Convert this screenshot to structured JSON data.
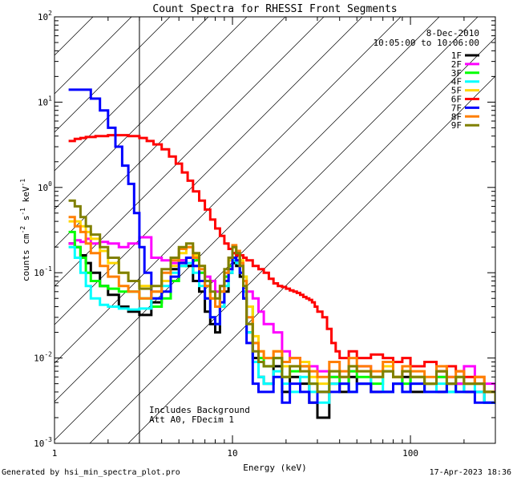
{
  "chart_data": {
    "type": "line",
    "title": "Count Spectra for RHESSI Front Segments",
    "xlabel": "Energy (keV)",
    "ylabel": "counts cm-2 s-1 keV-1",
    "xscale": "log",
    "yscale": "log",
    "xlim": [
      1,
      300
    ],
    "ylim": [
      0.001,
      100
    ],
    "x_ticks": [
      {
        "value": 1,
        "label": "1"
      },
      {
        "value": 10,
        "label": "10"
      },
      {
        "value": 100,
        "label": "100"
      }
    ],
    "y_ticks": [
      {
        "value": 0.001,
        "base": "10",
        "exp": "-3"
      },
      {
        "value": 0.01,
        "base": "10",
        "exp": "-2"
      },
      {
        "value": 0.1,
        "base": "10",
        "exp": "-1"
      },
      {
        "value": 1,
        "base": "10",
        "exp": "0"
      },
      {
        "value": 10,
        "base": "10",
        "exp": "1"
      },
      {
        "value": 100,
        "base": "10",
        "exp": "2"
      }
    ],
    "date": "8-Dec-2010",
    "time_range": "10:05:00 to 10:06:00",
    "shaded_region": {
      "x_from": 1,
      "x_to": 3,
      "pattern": "diagonal hatch"
    },
    "annotations": [
      "Includes Background",
      "Att A0, FDecim 1"
    ],
    "series": [
      {
        "name": "1F",
        "color": "#000000",
        "x": [
          1.2,
          1.3,
          1.4,
          1.5,
          1.6,
          1.8,
          2.0,
          2.3,
          2.6,
          3.0,
          3.5,
          4.0,
          4.5,
          5.0,
          5.5,
          6.0,
          6.5,
          7.0,
          7.5,
          8.0,
          8.5,
          9.0,
          9.5,
          10.0,
          10.5,
          11.0,
          11.5,
          12,
          13,
          14,
          15,
          17,
          19,
          21,
          24,
          27,
          30,
          35,
          40,
          45,
          50,
          60,
          70,
          80,
          90,
          100,
          120,
          140,
          160,
          180,
          200,
          230,
          260,
          300
        ],
        "y": [
          0.22,
          0.2,
          0.16,
          0.13,
          0.1,
          0.07,
          0.055,
          0.04,
          0.035,
          0.032,
          0.045,
          0.08,
          0.11,
          0.14,
          0.12,
          0.08,
          0.06,
          0.035,
          0.025,
          0.02,
          0.04,
          0.06,
          0.1,
          0.13,
          0.12,
          0.09,
          0.05,
          0.02,
          0.01,
          0.006,
          0.005,
          0.008,
          0.004,
          0.006,
          0.005,
          0.003,
          0.002,
          0.005,
          0.004,
          0.006,
          0.005,
          0.004,
          0.004,
          0.005,
          0.006,
          0.004,
          0.005,
          0.004,
          0.005,
          0.005,
          0.004,
          0.004,
          0.003,
          0.003
        ]
      },
      {
        "name": "2F",
        "color": "#ff00ff",
        "x": [
          1.2,
          1.3,
          1.4,
          1.5,
          1.6,
          1.8,
          2.0,
          2.3,
          2.6,
          3.0,
          3.5,
          4.0,
          4.5,
          5.0,
          5.5,
          6.0,
          6.5,
          7.0,
          7.5,
          8.0,
          8.5,
          9.0,
          9.5,
          10.0,
          10.5,
          11.0,
          11.5,
          12,
          13,
          14,
          15,
          17,
          19,
          21,
          24,
          27,
          30,
          35,
          40,
          45,
          50,
          60,
          70,
          80,
          90,
          100,
          120,
          140,
          160,
          180,
          200,
          230,
          260,
          300
        ],
        "y": [
          0.22,
          0.24,
          0.23,
          0.25,
          0.22,
          0.23,
          0.22,
          0.2,
          0.22,
          0.26,
          0.15,
          0.14,
          0.13,
          0.14,
          0.15,
          0.12,
          0.1,
          0.09,
          0.08,
          0.06,
          0.07,
          0.09,
          0.12,
          0.15,
          0.14,
          0.12,
          0.08,
          0.06,
          0.05,
          0.035,
          0.025,
          0.02,
          0.012,
          0.01,
          0.008,
          0.008,
          0.007,
          0.006,
          0.006,
          0.007,
          0.008,
          0.006,
          0.007,
          0.006,
          0.007,
          0.006,
          0.005,
          0.006,
          0.006,
          0.005,
          0.008,
          0.006,
          0.005,
          0.004
        ]
      },
      {
        "name": "3F",
        "color": "#00ff00",
        "x": [
          1.2,
          1.3,
          1.4,
          1.5,
          1.6,
          1.8,
          2.0,
          2.3,
          2.6,
          3.0,
          3.5,
          4.0,
          4.5,
          5.0,
          5.5,
          6.0,
          6.5,
          7.0,
          7.5,
          8.0,
          8.5,
          9.0,
          9.5,
          10.0,
          10.5,
          11.0,
          11.5,
          12,
          13,
          14,
          15,
          17,
          19,
          21,
          24,
          27,
          30,
          35,
          40,
          45,
          50,
          60,
          70,
          80,
          90,
          100,
          120,
          140,
          160,
          180,
          200,
          230,
          260,
          300
        ],
        "y": [
          0.3,
          0.2,
          0.15,
          0.1,
          0.08,
          0.07,
          0.065,
          0.06,
          0.06,
          0.05,
          0.04,
          0.05,
          0.08,
          0.12,
          0.15,
          0.14,
          0.1,
          0.07,
          0.05,
          0.04,
          0.06,
          0.09,
          0.12,
          0.17,
          0.16,
          0.13,
          0.09,
          0.04,
          0.015,
          0.01,
          0.008,
          0.01,
          0.006,
          0.007,
          0.008,
          0.005,
          0.004,
          0.006,
          0.005,
          0.007,
          0.006,
          0.005,
          0.007,
          0.006,
          0.005,
          0.006,
          0.005,
          0.006,
          0.004,
          0.006,
          0.005,
          0.005,
          0.004,
          0.003
        ]
      },
      {
        "name": "4F",
        "color": "#00ffff",
        "x": [
          1.2,
          1.3,
          1.4,
          1.5,
          1.6,
          1.8,
          2.0,
          2.3,
          2.6,
          3.0,
          3.5,
          4.0,
          4.5,
          5.0,
          5.5,
          6.0,
          6.5,
          7.0,
          7.5,
          8.0,
          8.5,
          9.0,
          9.5,
          10.0,
          10.5,
          11.0,
          11.5,
          12,
          13,
          14,
          15,
          17,
          19,
          21,
          24,
          27,
          30,
          35,
          40,
          45,
          50,
          60,
          70,
          80,
          90,
          100,
          120,
          140,
          160,
          180,
          200,
          230,
          260,
          300
        ],
        "y": [
          0.2,
          0.15,
          0.1,
          0.07,
          0.05,
          0.042,
          0.04,
          0.038,
          0.037,
          0.038,
          0.05,
          0.07,
          0.1,
          0.12,
          0.13,
          0.1,
          0.07,
          0.05,
          0.03,
          0.025,
          0.04,
          0.07,
          0.1,
          0.14,
          0.13,
          0.1,
          0.06,
          0.02,
          0.009,
          0.006,
          0.005,
          0.007,
          0.005,
          0.004,
          0.006,
          0.004,
          0.003,
          0.005,
          0.005,
          0.004,
          0.005,
          0.006,
          0.004,
          0.005,
          0.004,
          0.005,
          0.004,
          0.005,
          0.004,
          0.004,
          0.005,
          0.004,
          0.003,
          0.003
        ]
      },
      {
        "name": "5F",
        "color": "#ffd700",
        "x": [
          1.2,
          1.3,
          1.4,
          1.5,
          1.6,
          1.8,
          2.0,
          2.3,
          2.6,
          3.0,
          3.5,
          4.0,
          4.5,
          5.0,
          5.5,
          6.0,
          6.5,
          7.0,
          7.5,
          8.0,
          8.5,
          9.0,
          9.5,
          10.0,
          10.5,
          11.0,
          11.5,
          12,
          13,
          14,
          15,
          17,
          19,
          21,
          24,
          27,
          30,
          35,
          40,
          45,
          50,
          60,
          70,
          80,
          90,
          100,
          120,
          140,
          160,
          180,
          200,
          230,
          260,
          300
        ],
        "y": [
          0.4,
          0.4,
          0.35,
          0.3,
          0.25,
          0.18,
          0.13,
          0.1,
          0.08,
          0.07,
          0.06,
          0.08,
          0.12,
          0.17,
          0.2,
          0.16,
          0.12,
          0.08,
          0.05,
          0.04,
          0.06,
          0.1,
          0.14,
          0.2,
          0.18,
          0.14,
          0.09,
          0.04,
          0.018,
          0.012,
          0.01,
          0.012,
          0.008,
          0.008,
          0.009,
          0.006,
          0.005,
          0.007,
          0.006,
          0.008,
          0.007,
          0.006,
          0.008,
          0.006,
          0.007,
          0.006,
          0.005,
          0.007,
          0.005,
          0.006,
          0.005,
          0.006,
          0.004,
          0.003
        ]
      },
      {
        "name": "6F",
        "color": "#ff0000",
        "x": [
          1.2,
          1.3,
          1.4,
          1.5,
          1.7,
          2.0,
          2.3,
          2.6,
          3.0,
          3.3,
          3.6,
          4.0,
          4.4,
          4.8,
          5.2,
          5.6,
          6.0,
          6.5,
          7.0,
          7.5,
          8.0,
          8.5,
          9.0,
          9.5,
          10.0,
          10.5,
          11.0,
          11.5,
          12,
          13,
          14,
          15,
          16,
          17,
          18,
          19,
          20,
          21,
          22,
          23,
          24,
          25,
          26,
          27,
          28,
          29,
          30,
          32,
          34,
          36,
          38,
          40,
          45,
          50,
          60,
          70,
          80,
          90,
          100,
          120,
          140,
          160,
          180,
          200,
          230,
          260,
          300
        ],
        "y": [
          3.5,
          3.7,
          3.8,
          3.9,
          4.0,
          4.1,
          4.1,
          4.0,
          3.8,
          3.5,
          3.2,
          2.8,
          2.3,
          1.9,
          1.5,
          1.2,
          0.9,
          0.7,
          0.55,
          0.42,
          0.33,
          0.27,
          0.22,
          0.19,
          0.17,
          0.16,
          0.16,
          0.15,
          0.14,
          0.12,
          0.11,
          0.1,
          0.085,
          0.075,
          0.07,
          0.068,
          0.065,
          0.062,
          0.06,
          0.058,
          0.055,
          0.052,
          0.05,
          0.048,
          0.045,
          0.04,
          0.035,
          0.03,
          0.022,
          0.015,
          0.012,
          0.01,
          0.012,
          0.01,
          0.011,
          0.01,
          0.009,
          0.01,
          0.008,
          0.009,
          0.007,
          0.008,
          0.007,
          0.006,
          0.005,
          0.004,
          0.003
        ]
      },
      {
        "name": "7F",
        "color": "#0000ff",
        "x": [
          1.2,
          1.4,
          1.6,
          1.8,
          2.0,
          2.2,
          2.4,
          2.6,
          2.8,
          3.0,
          3.2,
          3.5,
          4.0,
          4.5,
          5.0,
          5.5,
          6.0,
          6.5,
          7.0,
          7.5,
          8.0,
          8.5,
          9.0,
          9.5,
          10.0,
          10.5,
          11.0,
          11.5,
          12,
          13,
          14,
          15,
          17,
          19,
          21,
          24,
          27,
          30,
          35,
          40,
          45,
          50,
          60,
          70,
          80,
          90,
          100,
          120,
          140,
          160,
          180,
          200,
          230,
          260,
          300
        ],
        "y": [
          14,
          14,
          11,
          8,
          5,
          3,
          1.8,
          1.1,
          0.5,
          0.2,
          0.1,
          0.05,
          0.06,
          0.09,
          0.13,
          0.15,
          0.12,
          0.08,
          0.05,
          0.03,
          0.025,
          0.045,
          0.08,
          0.11,
          0.15,
          0.14,
          0.1,
          0.05,
          0.015,
          0.005,
          0.004,
          0.004,
          0.006,
          0.003,
          0.005,
          0.004,
          0.003,
          0.004,
          0.004,
          0.005,
          0.004,
          0.005,
          0.004,
          0.004,
          0.005,
          0.004,
          0.005,
          0.004,
          0.004,
          0.005,
          0.004,
          0.004,
          0.003,
          0.003,
          0.003
        ]
      },
      {
        "name": "8F",
        "color": "#ff7f00",
        "x": [
          1.2,
          1.3,
          1.4,
          1.5,
          1.6,
          1.8,
          2.0,
          2.3,
          2.6,
          3.0,
          3.5,
          4.0,
          4.5,
          5.0,
          5.5,
          6.0,
          6.5,
          7.0,
          7.5,
          8.0,
          8.5,
          9.0,
          9.5,
          10.0,
          10.5,
          11.0,
          11.5,
          12,
          13,
          14,
          15,
          17,
          19,
          21,
          24,
          27,
          30,
          35,
          40,
          45,
          50,
          60,
          70,
          80,
          90,
          100,
          120,
          140,
          160,
          180,
          200,
          230,
          260,
          300
        ],
        "y": [
          0.45,
          0.35,
          0.3,
          0.22,
          0.17,
          0.12,
          0.09,
          0.07,
          0.06,
          0.05,
          0.06,
          0.1,
          0.14,
          0.19,
          0.2,
          0.15,
          0.11,
          0.07,
          0.05,
          0.04,
          0.06,
          0.1,
          0.15,
          0.21,
          0.18,
          0.13,
          0.08,
          0.03,
          0.015,
          0.012,
          0.01,
          0.012,
          0.009,
          0.01,
          0.008,
          0.007,
          0.006,
          0.009,
          0.007,
          0.01,
          0.008,
          0.007,
          0.009,
          0.006,
          0.008,
          0.007,
          0.006,
          0.008,
          0.006,
          0.007,
          0.005,
          0.006,
          0.004,
          0.003
        ]
      },
      {
        "name": "9F",
        "color": "#808000",
        "x": [
          1.2,
          1.3,
          1.4,
          1.5,
          1.6,
          1.8,
          2.0,
          2.3,
          2.6,
          3.0,
          3.5,
          4.0,
          4.5,
          5.0,
          5.5,
          6.0,
          6.5,
          7.0,
          7.5,
          8.0,
          8.5,
          9.0,
          9.5,
          10.0,
          10.5,
          11.0,
          11.5,
          12,
          13,
          14,
          15,
          17,
          19,
          21,
          24,
          27,
          30,
          35,
          40,
          45,
          50,
          60,
          70,
          80,
          90,
          100,
          120,
          140,
          160,
          180,
          200,
          230,
          260,
          300
        ],
        "y": [
          0.7,
          0.6,
          0.45,
          0.35,
          0.28,
          0.2,
          0.15,
          0.1,
          0.08,
          0.065,
          0.07,
          0.11,
          0.15,
          0.2,
          0.22,
          0.17,
          0.12,
          0.08,
          0.06,
          0.05,
          0.07,
          0.11,
          0.15,
          0.2,
          0.17,
          0.12,
          0.07,
          0.025,
          0.012,
          0.009,
          0.008,
          0.01,
          0.006,
          0.008,
          0.007,
          0.005,
          0.004,
          0.007,
          0.006,
          0.008,
          0.007,
          0.006,
          0.007,
          0.006,
          0.007,
          0.006,
          0.005,
          0.007,
          0.005,
          0.006,
          0.005,
          0.005,
          0.004,
          0.003
        ]
      }
    ]
  },
  "footer": {
    "left": "Generated by hsi_min_spectra_plot.pro",
    "right": "17-Apr-2023 18:36"
  }
}
